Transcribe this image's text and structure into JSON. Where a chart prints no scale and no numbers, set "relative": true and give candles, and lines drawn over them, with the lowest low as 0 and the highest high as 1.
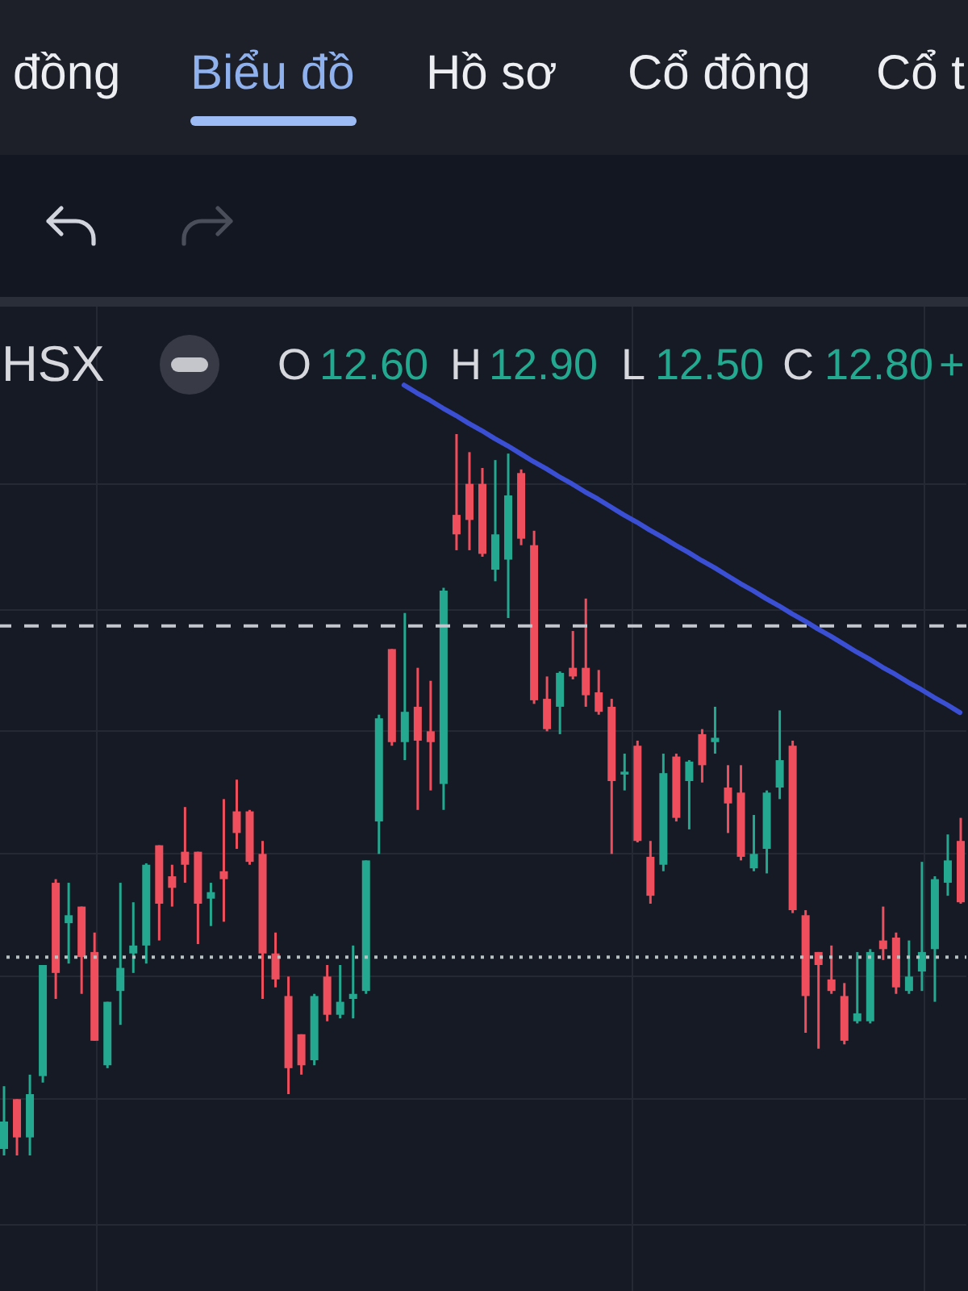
{
  "chart_data": {
    "type": "candlestick",
    "relative": true,
    "grid": true,
    "categories": [
      null,
      null,
      null,
      null,
      null,
      null,
      null,
      null,
      null,
      null,
      null,
      null,
      null,
      null,
      null,
      null,
      null,
      null,
      null,
      null,
      null,
      null,
      null,
      null,
      null,
      null,
      null,
      null,
      null,
      null,
      null,
      null,
      null,
      null,
      null,
      null,
      null,
      null,
      null,
      null,
      null,
      null,
      null,
      null,
      null,
      null,
      null,
      null,
      null,
      null,
      null,
      null,
      null,
      null,
      null,
      null,
      null,
      null,
      null,
      null,
      null,
      null,
      null,
      null,
      null,
      null,
      null,
      null,
      null,
      null,
      null,
      null,
      null,
      null,
      null
    ],
    "ohlc": [
      [
        0.009,
        0.096,
        0,
        0.047
      ],
      [
        0.078,
        0.078,
        0,
        0.025
      ],
      [
        0.025,
        0.112,
        0,
        0.085
      ],
      [
        0.11,
        0.264,
        0.101,
        0.264
      ],
      [
        0.378,
        0.383,
        0.217,
        0.253
      ],
      [
        0.322,
        0.378,
        0.266,
        0.333
      ],
      [
        0.345,
        0.345,
        0.224,
        0.275
      ],
      [
        0.282,
        0.309,
        0.159,
        0.159
      ],
      [
        0.125,
        0.213,
        0.121,
        0.213
      ],
      [
        0.228,
        0.378,
        0.181,
        0.26
      ],
      [
        0.28,
        0.351,
        0.253,
        0.291
      ],
      [
        0.291,
        0.405,
        0.266,
        0.403
      ],
      [
        0.43,
        0.43,
        0.298,
        0.349
      ],
      [
        0.387,
        0.403,
        0.345,
        0.371
      ],
      [
        0.421,
        0.483,
        0.378,
        0.403
      ],
      [
        0.421,
        0.421,
        0.293,
        0.349
      ],
      [
        0.356,
        0.378,
        0.318,
        0.365
      ],
      [
        0.394,
        0.494,
        0.324,
        0.383
      ],
      [
        0.477,
        0.521,
        0.425,
        0.447
      ],
      [
        0.477,
        0.479,
        0.403,
        0.407
      ],
      [
        0.418,
        0.436,
        0.217,
        0.28
      ],
      [
        0.28,
        0.309,
        0.233,
        0.244
      ],
      [
        0.221,
        0.248,
        0.085,
        0.121
      ],
      [
        0.168,
        0.168,
        0.112,
        0.125
      ],
      [
        0.132,
        0.224,
        0.125,
        0.221
      ],
      [
        0.248,
        0.264,
        0.186,
        0.195
      ],
      [
        0.195,
        0.264,
        0.19,
        0.213
      ],
      [
        0.217,
        0.291,
        0.19,
        0.224
      ],
      [
        0.228,
        0.409,
        0.224,
        0.409
      ],
      [
        0.463,
        0.611,
        0.418,
        0.606
      ],
      [
        0.702,
        0.702,
        0.568,
        0.573
      ],
      [
        0.573,
        0.752,
        0.548,
        0.615
      ],
      [
        0.622,
        0.676,
        0.479,
        0.575
      ],
      [
        0.588,
        0.658,
        0.506,
        0.573
      ],
      [
        0.515,
        0.787,
        0.479,
        0.783
      ],
      [
        0.888,
        1,
        0.839,
        0.861
      ],
      [
        0.931,
        0.975,
        0.839,
        0.881
      ],
      [
        0.931,
        0.953,
        0.83,
        0.834
      ],
      [
        0.812,
        0.964,
        0.796,
        0.861
      ],
      [
        0.826,
        0.973,
        0.745,
        0.915
      ],
      [
        0.946,
        0.951,
        0.846,
        0.855
      ],
      [
        0.846,
        0.866,
        0.626,
        0.631
      ],
      [
        0.633,
        0.664,
        0.588,
        0.591
      ],
      [
        0.622,
        0.671,
        0.584,
        0.669
      ],
      [
        0.676,
        0.727,
        0.66,
        0.664
      ],
      [
        0.676,
        0.772,
        0.622,
        0.638
      ],
      [
        0.642,
        0.673,
        0.611,
        0.615
      ],
      [
        0.622,
        0.633,
        0.418,
        0.519
      ],
      [
        0.528,
        0.557,
        0.506,
        0.532
      ],
      [
        0.568,
        0.575,
        0.434,
        0.436
      ],
      [
        0.414,
        0.436,
        0.349,
        0.36
      ],
      [
        0.403,
        0.557,
        0.394,
        0.53
      ],
      [
        0.553,
        0.557,
        0.463,
        0.468
      ],
      [
        0.519,
        0.548,
        0.452,
        0.546
      ],
      [
        0.584,
        0.591,
        0.517,
        0.541
      ],
      [
        0.573,
        0.622,
        0.557,
        0.579
      ],
      [
        0.51,
        0.541,
        0.447,
        0.488
      ],
      [
        0.503,
        0.541,
        0.409,
        0.414
      ],
      [
        0.398,
        0.472,
        0.394,
        0.418
      ],
      [
        0.425,
        0.506,
        0.391,
        0.503
      ],
      [
        0.51,
        0.617,
        0.494,
        0.548
      ],
      [
        0.568,
        0.575,
        0.336,
        0.34
      ],
      [
        0.333,
        0.34,
        0.17,
        0.221
      ],
      [
        0.282,
        0.282,
        0.148,
        0.264
      ],
      [
        0.244,
        0.291,
        0.224,
        0.228
      ],
      [
        0.221,
        0.239,
        0.154,
        0.159
      ],
      [
        0.186,
        0.282,
        0.183,
        0.197
      ],
      [
        0.186,
        0.286,
        0.183,
        0.282
      ],
      [
        0.298,
        0.345,
        0.271,
        0.286
      ],
      [
        0.302,
        0.309,
        0.224,
        0.233
      ],
      [
        0.228,
        0.298,
        0.224,
        0.248
      ],
      [
        0.255,
        0.407,
        0.228,
        0.282
      ],
      [
        0.286,
        0.387,
        0.213,
        0.383
      ],
      [
        0.378,
        0.445,
        0.36,
        0.409
      ],
      [
        0.436,
        0.468,
        0.349,
        0.351
      ]
    ],
    "colors": [
      "#24a88f",
      "#ef4f5c",
      "#24a88f",
      "#24a88f",
      "#ef4f5c",
      "#24a88f",
      "#ef4f5c",
      "#ef4f5c",
      "#24a88f",
      "#24a88f",
      "#24a88f",
      "#24a88f",
      "#ef4f5c",
      "#ef4f5c",
      "#ef4f5c",
      "#ef4f5c",
      "#24a88f",
      "#ef4f5c",
      "#ef4f5c",
      "#ef4f5c",
      "#ef4f5c",
      "#ef4f5c",
      "#ef4f5c",
      "#ef4f5c",
      "#24a88f",
      "#ef4f5c",
      "#24a88f",
      "#24a88f",
      "#24a88f",
      "#24a88f",
      "#ef4f5c",
      "#24a88f",
      "#ef4f5c",
      "#ef4f5c",
      "#24a88f",
      "#ef4f5c",
      "#ef4f5c",
      "#ef4f5c",
      "#24a88f",
      "#24a88f",
      "#ef4f5c",
      "#ef4f5c",
      "#ef4f5c",
      "#24a88f",
      "#ef4f5c",
      "#ef4f5c",
      "#ef4f5c",
      "#ef4f5c",
      "#24a88f",
      "#ef4f5c",
      "#ef4f5c",
      "#24a88f",
      "#ef4f5c",
      "#24a88f",
      "#ef4f5c",
      "#24a88f",
      "#ef4f5c",
      "#ef4f5c",
      "#24a88f",
      "#24a88f",
      "#24a88f",
      "#ef4f5c",
      "#ef4f5c",
      "#ef4f5c",
      "#ef4f5c",
      "#ef4f5c",
      "#24a88f",
      "#24a88f",
      "#ef4f5c",
      "#ef4f5c",
      "#24a88f",
      "#24a88f",
      "#24a88f",
      "#24a88f",
      "#ef4f5c"
    ],
    "series": [
      {
        "type": "line",
        "color": "#3b4fd4",
        "marker": "none",
        "values": [
          null,
          null,
          null,
          null,
          null,
          null,
          null,
          null,
          null,
          null,
          null,
          null,
          null,
          null,
          null,
          null,
          null,
          null,
          null,
          null,
          null,
          null,
          null,
          null,
          null,
          null,
          null,
          null,
          null,
          null,
          null,
          1.068,
          1.057,
          1.047,
          1.036,
          1.026,
          1.015,
          1.005,
          0.994,
          0.984,
          0.973,
          0.962,
          0.952,
          0.941,
          0.931,
          0.92,
          0.91,
          0.899,
          0.888,
          0.878,
          0.867,
          0.857,
          0.846,
          0.836,
          0.825,
          0.815,
          0.804,
          0.793,
          0.783,
          0.772,
          0.762,
          0.751,
          0.741,
          0.73,
          0.72,
          0.709,
          0.698,
          0.688,
          0.677,
          0.667,
          0.656,
          0.646,
          0.635,
          0.625,
          0.614
        ]
      }
    ],
    "ref_lines": [
      {
        "axis": "y",
        "value": 0.734,
        "line_style": "dashed",
        "color": "#c3c6cd"
      },
      {
        "axis": "y",
        "value": 0.275,
        "line_style": "dotted",
        "color": "#b9c2c2"
      }
    ],
    "annotations": [
      "đồng",
      "Biểu đồ",
      "Hồ sơ",
      "Cổ đông",
      "Cổ t",
      "HSX",
      "O",
      "12.60",
      "H",
      "12.90",
      "L",
      "12.50",
      "C",
      "12.80",
      "+"
    ]
  }
}
